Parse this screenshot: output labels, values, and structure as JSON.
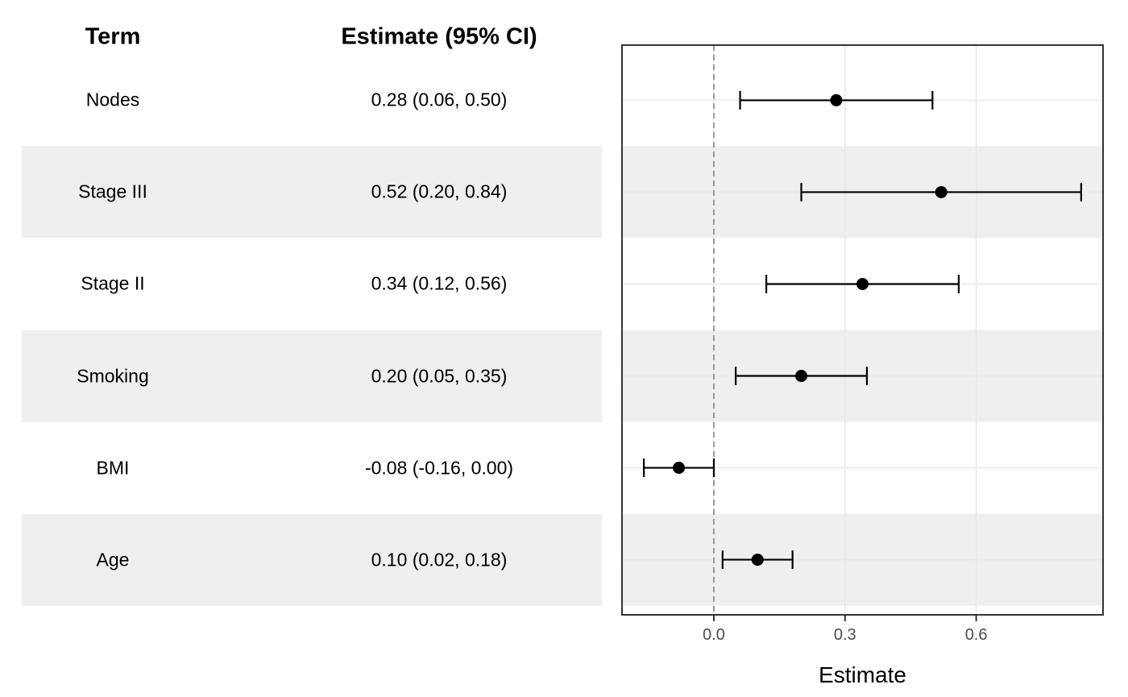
{
  "table": {
    "headers": {
      "term": "Term",
      "estimate": "Estimate (95% CI)"
    },
    "rows": [
      {
        "term": "Nodes",
        "estimate_label": "0.28 (0.06, 0.50)"
      },
      {
        "term": "Stage III",
        "estimate_label": "0.52 (0.20, 0.84)"
      },
      {
        "term": "Stage II",
        "estimate_label": "0.34 (0.12, 0.56)"
      },
      {
        "term": "Smoking",
        "estimate_label": "0.20 (0.05, 0.35)"
      },
      {
        "term": "BMI",
        "estimate_label": "-0.08 (-0.16, 0.00)"
      },
      {
        "term": "Age",
        "estimate_label": "0.10 (0.02, 0.18)"
      }
    ]
  },
  "chart_data": {
    "type": "scatter",
    "subtype": "forest-plot",
    "orientation": "horizontal",
    "title": "",
    "xlabel": "Estimate",
    "ylabel": "",
    "x_ticks": [
      "0.0",
      "0.3",
      "0.6"
    ],
    "x_tick_values": [
      0.0,
      0.3,
      0.6
    ],
    "xlim": [
      -0.21,
      0.89
    ],
    "reference_line_x": 0,
    "grid": true,
    "legend": false,
    "striped_row_indices": [
      1,
      3,
      5
    ],
    "series": [
      {
        "name": "estimates",
        "points": [
          {
            "term": "Nodes",
            "estimate": 0.28,
            "ci_low": 0.06,
            "ci_high": 0.5
          },
          {
            "term": "Stage III",
            "estimate": 0.52,
            "ci_low": 0.2,
            "ci_high": 0.84
          },
          {
            "term": "Stage II",
            "estimate": 0.34,
            "ci_low": 0.12,
            "ci_high": 0.56
          },
          {
            "term": "Smoking",
            "estimate": 0.2,
            "ci_low": 0.05,
            "ci_high": 0.35
          },
          {
            "term": "BMI",
            "estimate": -0.08,
            "ci_low": -0.16,
            "ci_high": 0.0
          },
          {
            "term": "Age",
            "estimate": 0.1,
            "ci_low": 0.02,
            "ci_high": 0.18
          }
        ]
      }
    ]
  },
  "colors": {
    "background": "#FFFFFF",
    "stripe": "#EFEFEF",
    "grid": "#E9E9E9",
    "panel_border": "#333333",
    "reference_line": "#999999",
    "marker": "#000000",
    "tick_label": "#4D4D4D",
    "axis_title": "#000000",
    "table_text": "#000000"
  }
}
